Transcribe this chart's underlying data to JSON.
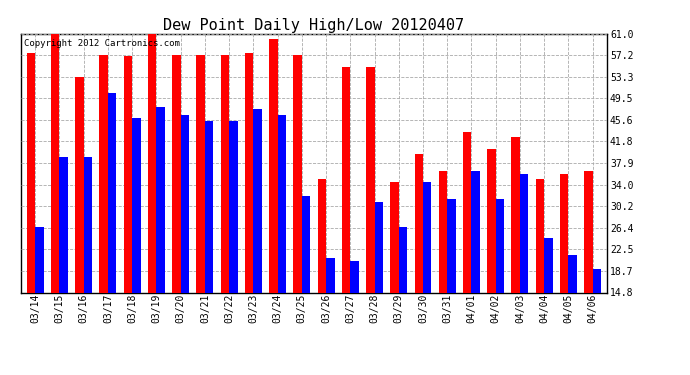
{
  "title": "Dew Point Daily High/Low 20120407",
  "copyright": "Copyright 2012 Cartronics.com",
  "dates": [
    "03/14",
    "03/15",
    "03/16",
    "03/17",
    "03/18",
    "03/19",
    "03/20",
    "03/21",
    "03/22",
    "03/23",
    "03/24",
    "03/25",
    "03/26",
    "03/27",
    "03/28",
    "03/29",
    "03/30",
    "03/31",
    "04/01",
    "04/02",
    "04/03",
    "04/04",
    "04/05",
    "04/06"
  ],
  "highs": [
    57.5,
    61.0,
    53.3,
    57.2,
    57.0,
    61.0,
    57.2,
    57.2,
    57.2,
    57.5,
    60.0,
    57.2,
    35.0,
    55.0,
    55.0,
    34.5,
    39.5,
    36.5,
    43.5,
    40.5,
    42.5,
    35.0,
    36.0,
    36.5
  ],
  "lows": [
    26.5,
    39.0,
    39.0,
    50.5,
    46.0,
    48.0,
    46.5,
    45.5,
    45.5,
    47.5,
    46.5,
    32.0,
    21.0,
    20.5,
    31.0,
    26.5,
    34.5,
    31.5,
    36.5,
    31.5,
    36.0,
    24.5,
    21.5,
    19.0
  ],
  "ymin": 14.8,
  "ymax": 61.0,
  "yticks": [
    14.8,
    18.7,
    22.5,
    26.4,
    30.2,
    34.0,
    37.9,
    41.8,
    45.6,
    49.5,
    53.3,
    57.2,
    61.0
  ],
  "bar_width": 0.35,
  "high_color": "#ff0000",
  "low_color": "#0000ff",
  "bg_color": "#ffffff",
  "grid_color": "#aaaaaa",
  "title_fontsize": 11,
  "tick_fontsize": 7,
  "copyright_fontsize": 6.5
}
